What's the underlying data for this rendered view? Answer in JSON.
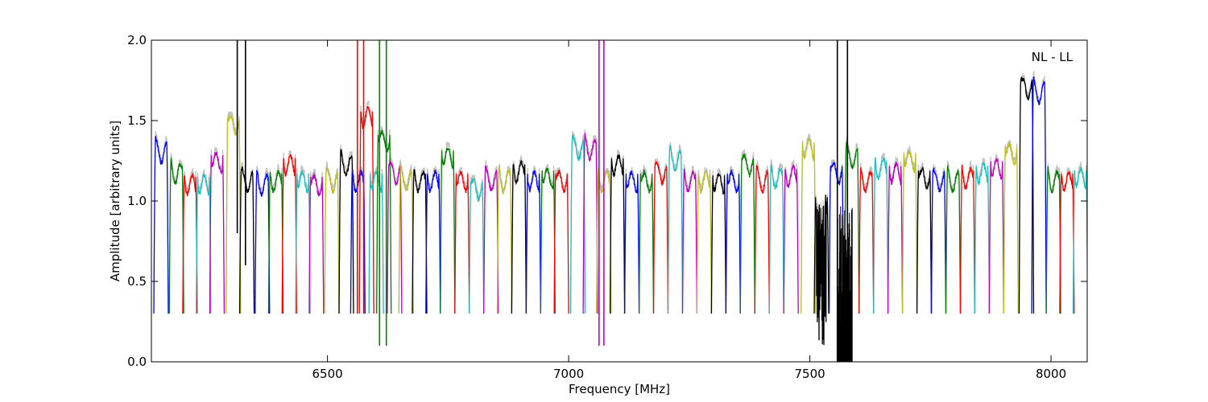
{
  "chart_data": {
    "type": "line",
    "title": "",
    "xlabel": "Frequency [MHz]",
    "ylabel": "Amplitude [arbitrary units]",
    "xlim": [
      6135,
      8075
    ],
    "ylim": [
      0.0,
      2.0
    ],
    "xticks": [
      6500,
      7000,
      7500,
      8000
    ],
    "xtick_labels": [
      "6500",
      "7000",
      "7500",
      "8000"
    ],
    "yticks": [
      0.0,
      0.5,
      1.0,
      1.5,
      2.0
    ],
    "ytick_labels": [
      "0.0",
      "0.5",
      "1.0",
      "1.5",
      "2.0"
    ],
    "grid": false,
    "annotation": "NL - LL",
    "annotation_position": "top-right",
    "spw_width_mhz": 30,
    "background_trace_color": "#bfbfbf",
    "colors": {
      "blue": "#0000ff",
      "green": "#008000",
      "red": "#ff0000",
      "cyan": "#1fbfbf",
      "magenta": "#bf00bf",
      "olive": "#bfbf1f",
      "black": "#000000"
    },
    "windows": [
      {
        "start": 6140,
        "peak": 1.38,
        "color": "blue"
      },
      {
        "start": 6172,
        "peak": 1.25,
        "color": "green"
      },
      {
        "start": 6200,
        "peak": 1.18,
        "color": "red"
      },
      {
        "start": 6228,
        "peak": 1.18,
        "color": "cyan"
      },
      {
        "start": 6256,
        "peak": 1.32,
        "color": "magenta"
      },
      {
        "start": 6290,
        "peak": 1.55,
        "color": "olive",
        "spike": 1.65
      },
      {
        "start": 6318,
        "peak": 1.2,
        "color": "black",
        "spike": 2.0
      },
      {
        "start": 6350,
        "peak": 1.18,
        "color": "blue"
      },
      {
        "start": 6378,
        "peak": 1.2,
        "color": "green"
      },
      {
        "start": 6406,
        "peak": 1.3,
        "color": "red"
      },
      {
        "start": 6434,
        "peak": 1.2,
        "color": "cyan"
      },
      {
        "start": 6462,
        "peak": 1.18,
        "color": "magenta"
      },
      {
        "start": 6494,
        "peak": 1.2,
        "color": "olive"
      },
      {
        "start": 6524,
        "peak": 1.3,
        "color": "black"
      },
      {
        "start": 6548,
        "peak": 1.2,
        "color": "blue"
      },
      {
        "start": 6566,
        "peak": 1.6,
        "color": "red",
        "spike": 2.0
      },
      {
        "start": 6586,
        "peak": 1.2,
        "color": "cyan"
      },
      {
        "start": 6602,
        "peak": 1.45,
        "color": "green",
        "spike": 2.0
      },
      {
        "start": 6624,
        "peak": 1.25,
        "color": "magenta"
      },
      {
        "start": 6648,
        "peak": 1.2,
        "color": "olive"
      },
      {
        "start": 6676,
        "peak": 1.2,
        "color": "black"
      },
      {
        "start": 6704,
        "peak": 1.2,
        "color": "blue"
      },
      {
        "start": 6734,
        "peak": 1.35,
        "color": "green"
      },
      {
        "start": 6764,
        "peak": 1.2,
        "color": "red"
      },
      {
        "start": 6794,
        "peak": 1.15,
        "color": "cyan"
      },
      {
        "start": 6824,
        "peak": 1.2,
        "color": "magenta"
      },
      {
        "start": 6852,
        "peak": 1.2,
        "color": "olive"
      },
      {
        "start": 6882,
        "peak": 1.26,
        "color": "black"
      },
      {
        "start": 6912,
        "peak": 1.2,
        "color": "blue"
      },
      {
        "start": 6942,
        "peak": 1.22,
        "color": "green"
      },
      {
        "start": 6970,
        "peak": 1.2,
        "color": "red"
      },
      {
        "start": 7004,
        "peak": 1.4,
        "color": "cyan"
      },
      {
        "start": 7030,
        "peak": 1.4,
        "color": "magenta",
        "spike": 2.0
      },
      {
        "start": 7058,
        "peak": 1.2,
        "color": "olive"
      },
      {
        "start": 7086,
        "peak": 1.3,
        "color": "black"
      },
      {
        "start": 7116,
        "peak": 1.2,
        "color": "blue"
      },
      {
        "start": 7146,
        "peak": 1.2,
        "color": "green"
      },
      {
        "start": 7176,
        "peak": 1.25,
        "color": "red"
      },
      {
        "start": 7206,
        "peak": 1.33,
        "color": "cyan"
      },
      {
        "start": 7236,
        "peak": 1.2,
        "color": "magenta"
      },
      {
        "start": 7266,
        "peak": 1.2,
        "color": "olive"
      },
      {
        "start": 7296,
        "peak": 1.19,
        "color": "black"
      },
      {
        "start": 7326,
        "peak": 1.2,
        "color": "blue"
      },
      {
        "start": 7356,
        "peak": 1.3,
        "color": "green"
      },
      {
        "start": 7386,
        "peak": 1.2,
        "color": "red"
      },
      {
        "start": 7416,
        "peak": 1.22,
        "color": "cyan"
      },
      {
        "start": 7446,
        "peak": 1.23,
        "color": "magenta"
      },
      {
        "start": 7482,
        "peak": 1.4,
        "color": "olive"
      },
      {
        "start": 7509,
        "peak": 1.05,
        "color": "black",
        "noisy": true
      },
      {
        "start": 7540,
        "peak": 1.25,
        "color": "blue"
      },
      {
        "start": 7572,
        "peak": 1.35,
        "color": "green"
      },
      {
        "start": 7602,
        "peak": 1.2,
        "color": "red"
      },
      {
        "start": 7632,
        "peak": 1.28,
        "color": "cyan"
      },
      {
        "start": 7662,
        "peak": 1.25,
        "color": "magenta"
      },
      {
        "start": 7692,
        "peak": 1.33,
        "color": "olive"
      },
      {
        "start": 7722,
        "peak": 1.22,
        "color": "black"
      },
      {
        "start": 7752,
        "peak": 1.2,
        "color": "blue"
      },
      {
        "start": 7782,
        "peak": 1.2,
        "color": "green"
      },
      {
        "start": 7812,
        "peak": 1.22,
        "color": "red"
      },
      {
        "start": 7842,
        "peak": 1.25,
        "color": "cyan"
      },
      {
        "start": 7872,
        "peak": 1.28,
        "color": "magenta"
      },
      {
        "start": 7902,
        "peak": 1.37,
        "color": "olive"
      },
      {
        "start": 7934,
        "peak": 1.78,
        "color": "black"
      },
      {
        "start": 7960,
        "peak": 1.75,
        "color": "blue"
      },
      {
        "start": 7990,
        "peak": 1.2,
        "color": "green"
      },
      {
        "start": 8018,
        "peak": 1.2,
        "color": "red"
      },
      {
        "start": 8046,
        "peak": 1.22,
        "color": "cyan"
      }
    ],
    "flagged_blocks": [
      {
        "x0": 7557,
        "x1": 7588,
        "y0": 0.0,
        "y1": 1.0,
        "color": "black"
      }
    ],
    "spikes": [
      {
        "x": 6313,
        "y0": 0.8,
        "y1": 2.0,
        "color": "black"
      },
      {
        "x": 6330,
        "y0": 0.6,
        "y1": 2.0,
        "color": "black"
      },
      {
        "x": 6562,
        "y0": 0.3,
        "y1": 2.0,
        "color": "red"
      },
      {
        "x": 6575,
        "y0": 0.3,
        "y1": 2.0,
        "color": "red"
      },
      {
        "x": 6608,
        "y0": 0.1,
        "y1": 2.0,
        "color": "green"
      },
      {
        "x": 6622,
        "y0": 0.1,
        "y1": 2.0,
        "color": "green"
      },
      {
        "x": 7063,
        "y0": 0.1,
        "y1": 2.0,
        "color": "magenta"
      },
      {
        "x": 7073,
        "y0": 0.1,
        "y1": 2.0,
        "color": "magenta"
      },
      {
        "x": 7557,
        "y0": 0.0,
        "y1": 2.0,
        "color": "black"
      },
      {
        "x": 7578,
        "y0": 0.0,
        "y1": 2.0,
        "color": "black"
      }
    ]
  }
}
